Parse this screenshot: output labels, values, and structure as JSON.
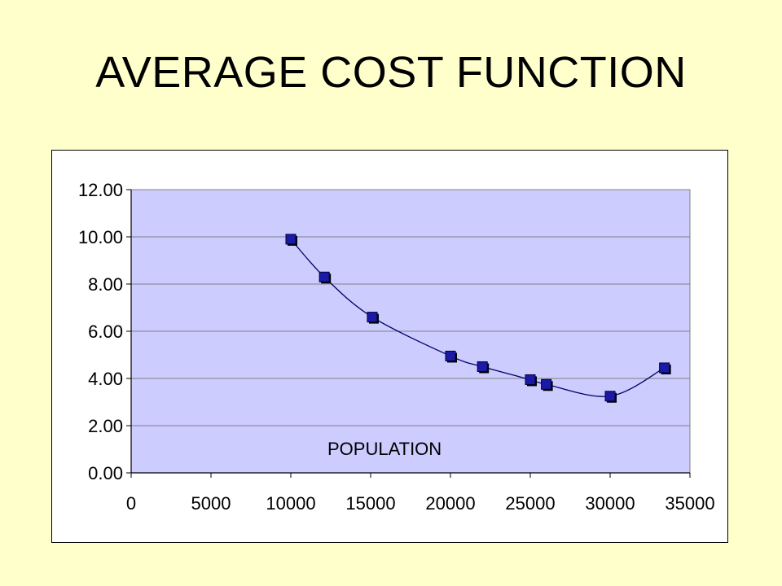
{
  "slide": {
    "title": "AVERAGE COST FUNCTION"
  },
  "colors": {
    "background": "#ffffcc",
    "plot_area": "#ccccff",
    "marker_fill": "#1a1aa6",
    "marker_shadow": "#000000",
    "line": "#000066",
    "gridline": "#808080"
  },
  "chart_data": {
    "type": "scatter",
    "title": "",
    "xlabel": "",
    "ylabel": "",
    "annotation": "POPULATION",
    "xlim": [
      0,
      35000
    ],
    "ylim": [
      0,
      12
    ],
    "x_ticks": [
      "0",
      "5000",
      "10000",
      "15000",
      "20000",
      "25000",
      "30000",
      "35000"
    ],
    "y_ticks": [
      "0.00",
      "2.00",
      "4.00",
      "6.00",
      "8.00",
      "10.00",
      "12.00"
    ],
    "grid": "horizontal",
    "legend": "none",
    "smoothed_line": true,
    "series": [
      {
        "x": [
          10000,
          12100,
          15100,
          20000,
          22000,
          25000,
          26000,
          30000,
          33400
        ],
        "y": [
          9.9,
          8.3,
          6.6,
          4.95,
          4.5,
          3.95,
          3.75,
          3.25,
          4.45
        ]
      }
    ]
  }
}
